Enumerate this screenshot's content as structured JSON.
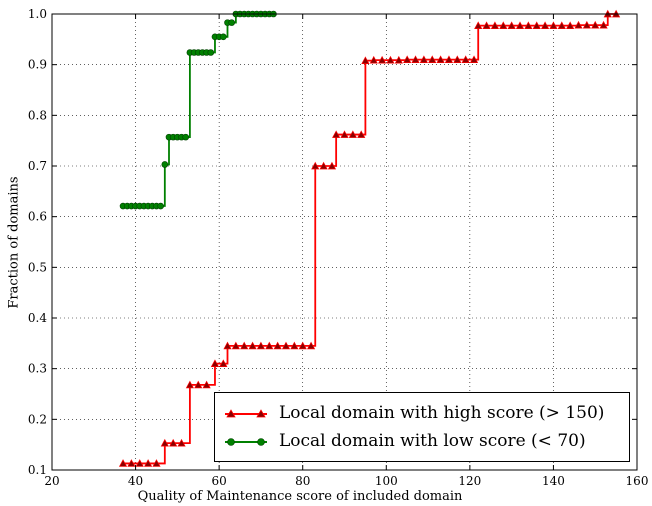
{
  "chart_data": {
    "type": "line",
    "step": true,
    "xlabel": "Quality of Maintenance score of included domain",
    "ylabel": "Fraction of domains",
    "xlim": [
      20,
      160
    ],
    "ylim": [
      0.1,
      1.0
    ],
    "x_ticks": [
      "20",
      "40",
      "60",
      "80",
      "100",
      "120",
      "140",
      "160"
    ],
    "y_ticks": [
      "0.1",
      "0.2",
      "0.3",
      "0.4",
      "0.5",
      "0.6",
      "0.7",
      "0.8",
      "0.9",
      "1.0"
    ],
    "grid": true,
    "legend_position": "lower-right",
    "series": [
      {
        "name": "Local domain with high score (> 150)",
        "color": "#ff0000",
        "marker": "triangle",
        "marker_color": "#8b0000",
        "x": [
          37,
          39,
          41,
          43,
          45,
          47,
          49,
          51,
          53,
          55,
          57,
          59,
          61,
          62,
          64,
          66,
          68,
          70,
          72,
          74,
          76,
          78,
          80,
          82,
          83,
          85,
          87,
          88,
          90,
          92,
          94,
          95,
          97,
          99,
          101,
          103,
          105,
          107,
          109,
          111,
          113,
          115,
          117,
          119,
          121,
          122,
          124,
          126,
          128,
          130,
          132,
          134,
          136,
          138,
          140,
          142,
          144,
          146,
          148,
          150,
          152,
          153,
          155
        ],
        "y": [
          0.113,
          0.113,
          0.113,
          0.113,
          0.113,
          0.153,
          0.153,
          0.153,
          0.268,
          0.268,
          0.268,
          0.31,
          0.31,
          0.345,
          0.345,
          0.345,
          0.345,
          0.345,
          0.345,
          0.345,
          0.345,
          0.345,
          0.345,
          0.345,
          0.7,
          0.7,
          0.7,
          0.762,
          0.762,
          0.762,
          0.762,
          0.908,
          0.909,
          0.909,
          0.909,
          0.909,
          0.91,
          0.91,
          0.91,
          0.91,
          0.91,
          0.91,
          0.91,
          0.91,
          0.91,
          0.977,
          0.977,
          0.977,
          0.977,
          0.977,
          0.977,
          0.977,
          0.977,
          0.977,
          0.977,
          0.977,
          0.977,
          0.978,
          0.978,
          0.978,
          0.978,
          1.0,
          1.0
        ]
      },
      {
        "name": "Local domain with low score (< 70)",
        "color": "#008000",
        "marker": "circle",
        "marker_color": "#008000",
        "x": [
          37,
          38,
          39,
          40,
          41,
          42,
          43,
          44,
          45,
          46,
          47,
          48,
          49,
          50,
          51,
          52,
          53,
          54,
          55,
          56,
          57,
          58,
          59,
          60,
          61,
          62,
          63,
          64,
          65,
          66,
          67,
          68,
          69,
          70,
          71,
          72,
          73
        ],
        "y": [
          0.621,
          0.621,
          0.621,
          0.621,
          0.621,
          0.621,
          0.621,
          0.621,
          0.621,
          0.621,
          0.703,
          0.757,
          0.757,
          0.757,
          0.757,
          0.757,
          0.924,
          0.924,
          0.924,
          0.924,
          0.924,
          0.924,
          0.955,
          0.955,
          0.955,
          0.983,
          0.983,
          1.0,
          1.0,
          1.0,
          1.0,
          1.0,
          1.0,
          1.0,
          1.0,
          1.0,
          1.0
        ]
      }
    ]
  }
}
